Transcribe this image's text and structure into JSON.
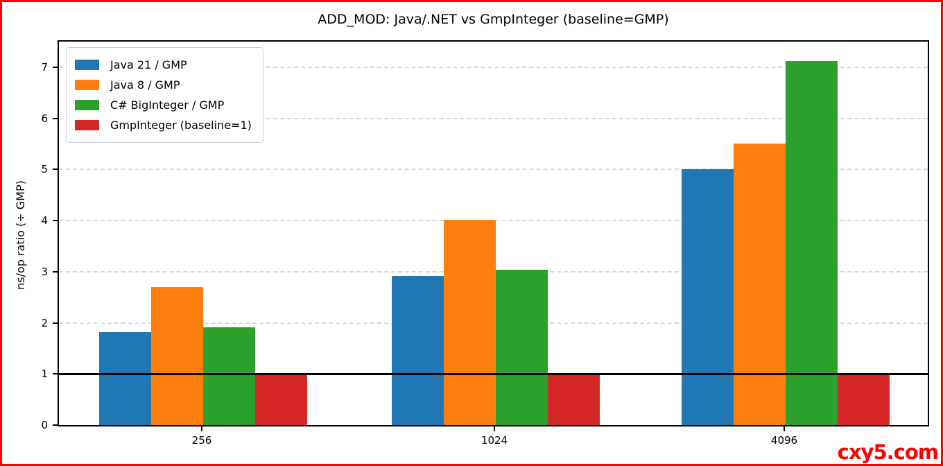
{
  "figure": {
    "watermark": "cxy5.com",
    "frame_color": "#ff0000"
  },
  "chart_data": {
    "type": "bar",
    "title": "ADD_MOD: Java/.NET vs GmpInteger (baseline=GMP)",
    "xlabel": "",
    "ylabel": "ns/op ratio (÷ GMP)",
    "categories": [
      "256",
      "1024",
      "4096"
    ],
    "series": [
      {
        "name": "Java 21 / GMP",
        "color": "#1f77b4",
        "values": [
          1.82,
          2.91,
          5.01
        ]
      },
      {
        "name": "Java 8 / GMP",
        "color": "#ff7f0e",
        "values": [
          2.7,
          4.02,
          5.5
        ]
      },
      {
        "name": "C# BigInteger / GMP",
        "color": "#2ca02c",
        "values": [
          1.91,
          3.04,
          7.12
        ]
      },
      {
        "name": "GmpInteger (baseline=1)",
        "color": "#d62728",
        "values": [
          1.0,
          1.0,
          1.0
        ]
      }
    ],
    "yticks": [
      0,
      1,
      2,
      3,
      4,
      5,
      6,
      7
    ],
    "ylim": [
      0,
      7.5
    ],
    "baseline_y": 1,
    "grid": {
      "axis": "y",
      "style": "dashed",
      "color": "#d9d9d9"
    },
    "legend_position": "upper-left"
  }
}
